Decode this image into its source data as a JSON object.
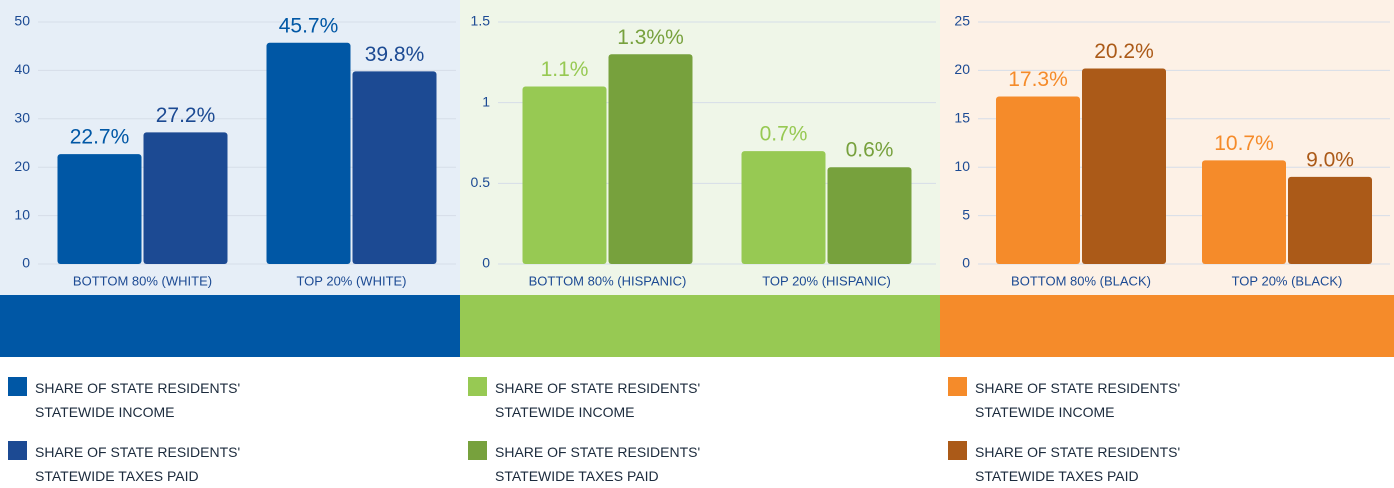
{
  "chart_data": [
    {
      "type": "bar",
      "categories": [
        "BOTTOM 80% (WHITE)",
        "TOP 20% (WHITE)"
      ],
      "series": [
        {
          "name": "SHARE OF STATE RESIDENTS' STATEWIDE INCOME",
          "color": "#0057a5",
          "values": [
            22.7,
            45.7
          ],
          "value_labels": [
            "22.7%",
            "45.7%"
          ]
        },
        {
          "name": "SHARE OF STATE RESIDENTS' STATEWIDE TAXES PAID",
          "color": "#1c4a93",
          "values": [
            27.2,
            39.8
          ],
          "value_labels": [
            "27.2%",
            "39.8%"
          ]
        }
      ],
      "ylim": [
        0,
        50
      ],
      "yticks": [
        0,
        10,
        20,
        30,
        40,
        50
      ],
      "grid": true
    },
    {
      "type": "bar",
      "categories": [
        "BOTTOM 80% (HISPANIC)",
        "TOP 20% (HISPANIC)"
      ],
      "series": [
        {
          "name": "SHARE OF STATE RESIDENTS' STATEWIDE INCOME",
          "color": "#97c953",
          "values": [
            1.1,
            0.7
          ],
          "value_labels": [
            "1.1%",
            "0.7%"
          ]
        },
        {
          "name": "SHARE OF STATE RESIDENTS' STATEWIDE TAXES PAID",
          "color": "#77a13d",
          "values": [
            1.3,
            0.6
          ],
          "value_labels": [
            "1.3%%",
            "0.6%"
          ]
        }
      ],
      "ylim": [
        0,
        1.5
      ],
      "yticks": [
        0,
        0.5,
        1,
        1.5
      ],
      "grid": true
    },
    {
      "type": "bar",
      "categories": [
        "BOTTOM 80% (BLACK)",
        "TOP 20% (BLACK)"
      ],
      "series": [
        {
          "name": "SHARE OF STATE RESIDENTS' STATEWIDE INCOME",
          "color": "#f58b2a",
          "values": [
            17.3,
            10.7
          ],
          "value_labels": [
            "17.3%",
            "10.7%"
          ]
        },
        {
          "name": "SHARE OF STATE RESIDENTS' STATEWIDE TAXES PAID",
          "color": "#ab5a18",
          "values": [
            20.2,
            9.0
          ],
          "value_labels": [
            "20.2%",
            "9.0%"
          ]
        }
      ],
      "ylim": [
        0,
        25
      ],
      "yticks": [
        0,
        5,
        10,
        15,
        20,
        25
      ],
      "grid": true
    }
  ]
}
